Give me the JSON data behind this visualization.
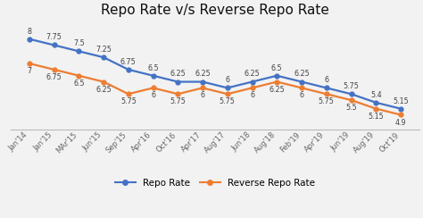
{
  "title": "Repo Rate v/s Reverse Repo Rate",
  "x_labels": [
    "Jan'14",
    "Jan'15",
    "MAr'15",
    "Jun'15",
    "Sep'15",
    "Apr'16",
    "Oct'16",
    "Apr'17",
    "Aug'17",
    "Jun'18",
    "Aug'18",
    "Feb'19",
    "Apr'19",
    "Jun'19",
    "Aug'19",
    "Oct'19"
  ],
  "repo_rate": [
    8,
    7.75,
    7.5,
    7.25,
    6.75,
    6.5,
    6.25,
    6.25,
    6,
    6.25,
    6.5,
    6.25,
    6,
    5.75,
    5.4,
    5.15
  ],
  "reverse_repo_rate": [
    7,
    6.75,
    6.5,
    6.25,
    5.75,
    6,
    5.75,
    6,
    5.75,
    6,
    6.25,
    6,
    5.75,
    5.5,
    5.15,
    4.9
  ],
  "repo_color": "#4472C4",
  "reverse_repo_color": "#ED7D31",
  "background_color": "#F2F2F2",
  "title_fontsize": 11,
  "label_fontsize": 6,
  "data_label_fontsize": 5.8,
  "legend_fontsize": 7.5,
  "ylim_min": 4.3,
  "ylim_max": 8.7
}
